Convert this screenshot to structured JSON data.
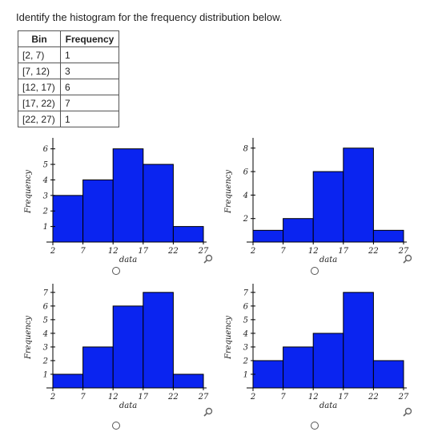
{
  "question": "Identify the histogram for the frequency distribution below.",
  "table": {
    "headers": [
      "Bin",
      "Frequency"
    ],
    "rows": [
      {
        "bin": "[2, 7)",
        "frequency": "1"
      },
      {
        "bin": "[7, 12)",
        "frequency": "3"
      },
      {
        "bin": "[12, 17)",
        "frequency": "6"
      },
      {
        "bin": "[17, 22)",
        "frequency": "7"
      },
      {
        "bin": "[22, 27)",
        "frequency": "1"
      }
    ]
  },
  "colors": {
    "bar_fill": "#0a24f0",
    "bar_stroke": "#000000"
  },
  "icons": {
    "zoom": "magnifier-icon",
    "radio": "radio-circle-icon"
  },
  "chart_data": [
    {
      "type": "bar",
      "xlabel": "data",
      "ylabel": "Frequency",
      "bin_edges": [
        2,
        7,
        12,
        17,
        22,
        27
      ],
      "x_ticks": [
        "2",
        "7",
        "12",
        "17",
        "22",
        "27"
      ],
      "values": [
        3,
        4,
        6,
        5,
        1
      ],
      "ylim": [
        0,
        6.5
      ],
      "y_ticks": [
        "1",
        "2",
        "3",
        "4",
        "5",
        "6"
      ],
      "y_tick_values": [
        1,
        2,
        3,
        4,
        5,
        6
      ]
    },
    {
      "type": "bar",
      "xlabel": "data",
      "ylabel": "Frequency",
      "bin_edges": [
        2,
        7,
        12,
        17,
        22,
        27
      ],
      "x_ticks": [
        "2",
        "7",
        "12",
        "17",
        "22",
        "27"
      ],
      "values": [
        1,
        2,
        6,
        8,
        1
      ],
      "ylim": [
        0,
        8.6
      ],
      "y_ticks": [
        "2",
        "4",
        "6",
        "8"
      ],
      "y_tick_values": [
        2,
        4,
        6,
        8
      ]
    },
    {
      "type": "bar",
      "xlabel": "data",
      "ylabel": "Frequency",
      "bin_edges": [
        2,
        7,
        12,
        17,
        22,
        27
      ],
      "x_ticks": [
        "2",
        "7",
        "12",
        "17",
        "22",
        "27"
      ],
      "values": [
        1,
        3,
        6,
        7,
        1
      ],
      "ylim": [
        0,
        7.4
      ],
      "y_ticks": [
        "1",
        "2",
        "3",
        "4",
        "5",
        "6",
        "7"
      ],
      "y_tick_values": [
        1,
        2,
        3,
        4,
        5,
        6,
        7
      ]
    },
    {
      "type": "bar",
      "xlabel": "data",
      "ylabel": "Frequency",
      "bin_edges": [
        2,
        7,
        12,
        17,
        22,
        27
      ],
      "x_ticks": [
        "2",
        "7",
        "12",
        "17",
        "22",
        "27"
      ],
      "values": [
        2,
        3,
        4,
        7,
        2
      ],
      "ylim": [
        0,
        7.4
      ],
      "y_ticks": [
        "1",
        "2",
        "3",
        "4",
        "5",
        "6",
        "7"
      ],
      "y_tick_values": [
        1,
        2,
        3,
        4,
        5,
        6,
        7
      ]
    }
  ]
}
